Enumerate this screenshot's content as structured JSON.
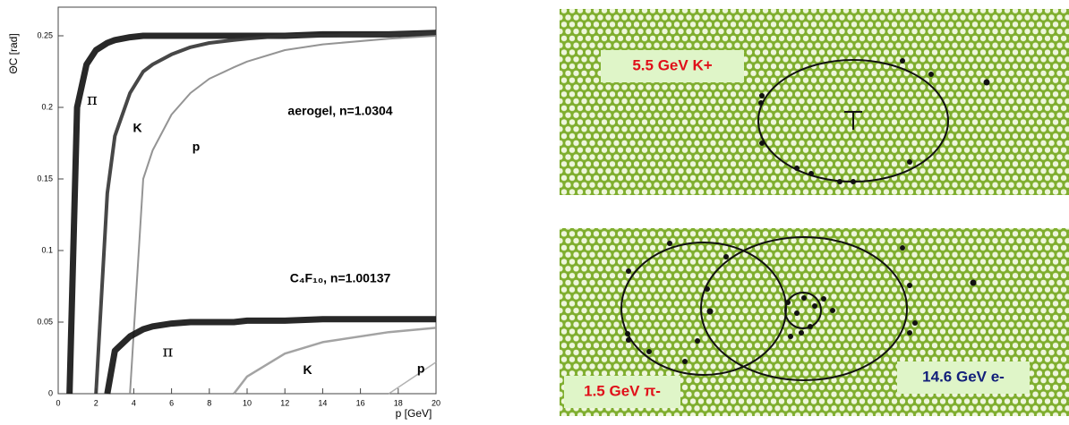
{
  "chart_data": {
    "type": "line",
    "x_label": "p [GeV]",
    "y_label": "ΘC [rad]",
    "x": [
      0.6,
      1,
      1.5,
      2,
      2.6,
      3,
      3.8,
      4.5,
      5,
      6,
      7,
      8,
      9.3,
      10,
      12,
      14,
      17.5,
      20
    ],
    "series": [
      {
        "name": "π",
        "color": "#111111",
        "values": [
          0,
          0.2,
          0.23,
          0.24,
          0.245,
          0.247,
          0.249,
          0.25,
          0.25,
          0.25,
          0.25,
          0.25,
          0.25,
          0.25,
          0.25,
          0.251,
          0.251,
          0.252
        ]
      },
      {
        "name": "K",
        "color": "#333333",
        "values": [
          null,
          null,
          null,
          0,
          0.14,
          0.18,
          0.21,
          0.225,
          0.23,
          0.237,
          0.242,
          0.245,
          0.247,
          0.248,
          0.25,
          0.25,
          0.251,
          0.252
        ]
      },
      {
        "name": "p",
        "color": "#888888",
        "values": [
          null,
          null,
          null,
          null,
          null,
          null,
          0,
          0.15,
          0.17,
          0.195,
          0.21,
          0.22,
          0.228,
          0.232,
          0.24,
          0.244,
          0.248,
          0.25
        ]
      },
      {
        "name": "π",
        "color": "#111111",
        "values": [
          null,
          null,
          null,
          null,
          0,
          0.03,
          0.04,
          0.045,
          0.047,
          0.049,
          0.05,
          0.05,
          0.05,
          0.051,
          0.051,
          0.052,
          0.052,
          0.052
        ]
      },
      {
        "name": "K",
        "color": "#999999",
        "values": [
          null,
          null,
          null,
          null,
          null,
          null,
          null,
          null,
          null,
          null,
          null,
          null,
          0,
          0.012,
          0.028,
          0.036,
          0.043,
          0.046
        ]
      },
      {
        "name": "p",
        "color": "#aaaaaa",
        "values": [
          null,
          null,
          null,
          null,
          null,
          null,
          null,
          null,
          null,
          null,
          null,
          null,
          null,
          null,
          null,
          null,
          0,
          0.022
        ]
      }
    ],
    "annotations": [
      "aerogel, n=1.0304",
      "C₄F₁₀, n=1.00137"
    ],
    "xlim": [
      0,
      20
    ],
    "xticks": [
      0,
      2,
      4,
      6,
      8,
      10,
      12,
      14,
      16,
      18,
      20
    ],
    "ylim": [
      0,
      0.27
    ],
    "yticks": [
      0,
      0.05,
      0.1,
      0.15,
      0.2,
      0.25
    ]
  },
  "event_displays": [
    {
      "labels": [
        "5.5 GeV K+"
      ]
    },
    {
      "labels": [
        "1.5 GeV π-",
        "14.6 GeV e-"
      ]
    }
  ]
}
